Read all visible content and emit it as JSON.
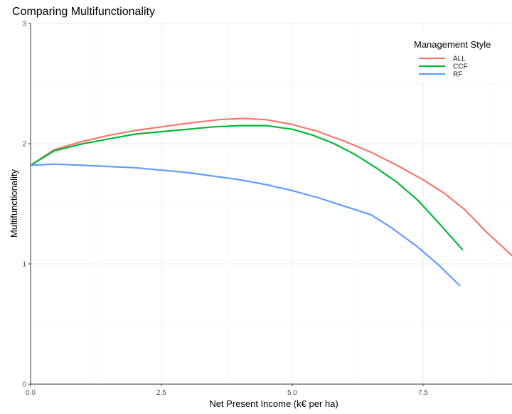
{
  "chart_data": {
    "type": "line",
    "title": "Comparing Multifunctionality",
    "xlabel": "Net Present Income (k€ per ha)",
    "ylabel": "Multifunctionality",
    "xlim": [
      0,
      9.2
    ],
    "ylim": [
      0,
      3
    ],
    "x_ticks": [
      "0.0",
      "2.5",
      "5.0",
      "7.5"
    ],
    "x_tick_values": [
      0,
      2.5,
      5.0,
      7.5
    ],
    "y_ticks": [
      "0",
      "1",
      "2",
      "3"
    ],
    "y_tick_values": [
      0,
      1,
      2,
      3
    ],
    "grid": true,
    "legend": {
      "title": "Management Style",
      "position": "top-right"
    },
    "series": [
      {
        "name": "ALL",
        "color": "#F8766D",
        "points": [
          [
            0.0,
            1.82
          ],
          [
            0.45,
            1.95
          ],
          [
            1.0,
            2.02
          ],
          [
            1.5,
            2.07
          ],
          [
            2.0,
            2.11
          ],
          [
            2.5,
            2.14
          ],
          [
            3.0,
            2.17
          ],
          [
            3.6,
            2.2
          ],
          [
            4.05,
            2.21
          ],
          [
            4.5,
            2.2
          ],
          [
            5.0,
            2.16
          ],
          [
            5.5,
            2.1
          ],
          [
            6.0,
            2.02
          ],
          [
            6.5,
            1.93
          ],
          [
            7.0,
            1.82
          ],
          [
            7.5,
            1.7
          ],
          [
            7.9,
            1.59
          ],
          [
            8.3,
            1.45
          ],
          [
            8.7,
            1.27
          ],
          [
            9.2,
            1.07
          ]
        ]
      },
      {
        "name": "CCF",
        "color": "#00BA38",
        "points": [
          [
            0.0,
            1.82
          ],
          [
            0.45,
            1.94
          ],
          [
            1.0,
            2.0
          ],
          [
            1.5,
            2.04
          ],
          [
            2.0,
            2.08
          ],
          [
            2.5,
            2.1
          ],
          [
            3.0,
            2.12
          ],
          [
            3.5,
            2.14
          ],
          [
            4.0,
            2.15
          ],
          [
            4.5,
            2.15
          ],
          [
            5.0,
            2.12
          ],
          [
            5.4,
            2.07
          ],
          [
            5.8,
            2.0
          ],
          [
            6.2,
            1.91
          ],
          [
            6.6,
            1.8
          ],
          [
            7.0,
            1.68
          ],
          [
            7.4,
            1.53
          ],
          [
            7.8,
            1.34
          ],
          [
            8.25,
            1.12
          ]
        ]
      },
      {
        "name": "RF",
        "color": "#619CFF",
        "points": [
          [
            0.0,
            1.82
          ],
          [
            0.45,
            1.83
          ],
          [
            1.0,
            1.82
          ],
          [
            1.5,
            1.81
          ],
          [
            2.0,
            1.8
          ],
          [
            2.5,
            1.78
          ],
          [
            3.0,
            1.76
          ],
          [
            3.5,
            1.73
          ],
          [
            4.0,
            1.7
          ],
          [
            4.5,
            1.66
          ],
          [
            5.0,
            1.61
          ],
          [
            5.5,
            1.55
          ],
          [
            6.0,
            1.48
          ],
          [
            6.5,
            1.41
          ],
          [
            6.9,
            1.3
          ],
          [
            7.4,
            1.14
          ],
          [
            7.8,
            0.99
          ],
          [
            8.2,
            0.82
          ]
        ]
      }
    ]
  }
}
